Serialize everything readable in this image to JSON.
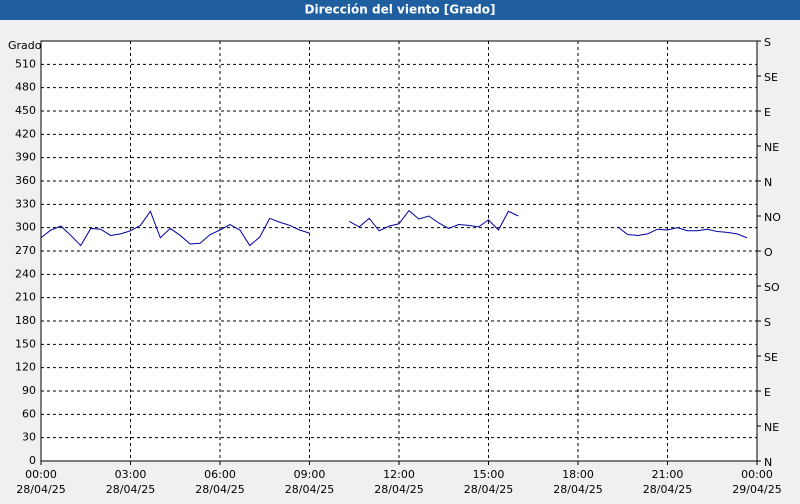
{
  "chart_data": {
    "type": "line",
    "title": "Dirección del viento [Grado]",
    "y_label": "Grado",
    "x": [
      "28/04/25 00:00",
      "28/04/25 00:20",
      "28/04/25 00:40",
      "28/04/25 01:00",
      "28/04/25 01:20",
      "28/04/25 01:40",
      "28/04/25 02:00",
      "28/04/25 02:20",
      "28/04/25 02:40",
      "28/04/25 03:00",
      "28/04/25 03:20",
      "28/04/25 03:40",
      "28/04/25 04:00",
      "28/04/25 04:20",
      "28/04/25 04:40",
      "28/04/25 05:00",
      "28/04/25 05:20",
      "28/04/25 05:40",
      "28/04/25 06:00",
      "28/04/25 06:20",
      "28/04/25 06:40",
      "28/04/25 07:00",
      "28/04/25 07:20",
      "28/04/25 07:40",
      "28/04/25 08:00",
      "28/04/25 08:20",
      "28/04/25 08:40",
      "28/04/25 09:00",
      "28/04/25 09:40",
      "28/04/25 10:20",
      "28/04/25 10:40",
      "28/04/25 11:00",
      "28/04/25 11:20",
      "28/04/25 11:40",
      "28/04/25 12:00",
      "28/04/25 12:20",
      "28/04/25 12:40",
      "28/04/25 13:00",
      "28/04/25 13:20",
      "28/04/25 13:40",
      "28/04/25 14:00",
      "28/04/25 14:20",
      "28/04/25 14:40",
      "28/04/25 15:00",
      "28/04/25 15:20",
      "28/04/25 15:40",
      "28/04/25 16:00",
      "28/04/25 17:40",
      "28/04/25 19:20",
      "28/04/25 19:40",
      "28/04/25 20:00",
      "28/04/25 20:20",
      "28/04/25 20:40",
      "28/04/25 21:00",
      "28/04/25 21:20",
      "28/04/25 21:40",
      "28/04/25 22:00",
      "28/04/25 22:20",
      "28/04/25 22:40",
      "28/04/25 23:00",
      "28/04/25 23:20",
      "28/04/25 23:40"
    ],
    "series": [
      {
        "color": "#0000a0",
        "values": [
          287,
          297,
          302,
          290,
          277,
          299,
          298,
          290,
          292,
          296,
          303,
          321,
          287,
          299,
          290,
          279,
          280,
          291,
          297,
          304,
          297,
          277,
          288,
          312,
          307,
          303,
          297,
          293,
          null,
          308,
          301,
          312,
          296,
          302,
          305,
          322,
          311,
          315,
          306,
          299,
          304,
          303,
          301,
          310,
          297,
          321,
          315,
          null,
          301,
          291,
          290,
          292,
          298,
          297,
          300,
          296,
          296,
          298,
          295,
          294,
          292,
          287
        ]
      }
    ],
    "xlim": [
      "28/04/25 00:00",
      "29/04/25 00:00"
    ],
    "xticks": [
      {
        "value": "28/04/25 00:00",
        "label": [
          "00:00",
          "28/04/25"
        ]
      },
      {
        "value": "28/04/25 03:00",
        "label": [
          "03:00",
          "28/04/25"
        ]
      },
      {
        "value": "28/04/25 06:00",
        "label": [
          "06:00",
          "28/04/25"
        ]
      },
      {
        "value": "28/04/25 09:00",
        "label": [
          "09:00",
          "28/04/25"
        ]
      },
      {
        "value": "28/04/25 12:00",
        "label": [
          "12:00",
          "28/04/25"
        ]
      },
      {
        "value": "28/04/25 15:00",
        "label": [
          "15:00",
          "28/04/25"
        ]
      },
      {
        "value": "28/04/25 18:00",
        "label": [
          "18:00",
          "28/04/25"
        ]
      },
      {
        "value": "28/04/25 21:00",
        "label": [
          "21:00",
          "28/04/25"
        ]
      },
      {
        "value": "29/04/25 00:00",
        "label": [
          "00:00",
          "29/04/25"
        ]
      }
    ],
    "ylim": [
      0,
      540
    ],
    "yticks": [
      0,
      30,
      60,
      90,
      120,
      150,
      180,
      210,
      240,
      270,
      300,
      330,
      360,
      390,
      420,
      450,
      480,
      510
    ],
    "y2lim": [
      0,
      540
    ],
    "y2ticks": [
      {
        "value": 0,
        "label": "N"
      },
      {
        "value": 45,
        "label": "NE"
      },
      {
        "value": 90,
        "label": "E"
      },
      {
        "value": 135,
        "label": "SE"
      },
      {
        "value": 180,
        "label": "S"
      },
      {
        "value": 225,
        "label": "SO"
      },
      {
        "value": 270,
        "label": "O"
      },
      {
        "value": 315,
        "label": "NO"
      },
      {
        "value": 360,
        "label": "N"
      },
      {
        "value": 405,
        "label": "NE"
      },
      {
        "value": 450,
        "label": "E"
      },
      {
        "value": 495,
        "label": "SE"
      },
      {
        "value": 540,
        "label": "S"
      }
    ],
    "grid": true
  }
}
